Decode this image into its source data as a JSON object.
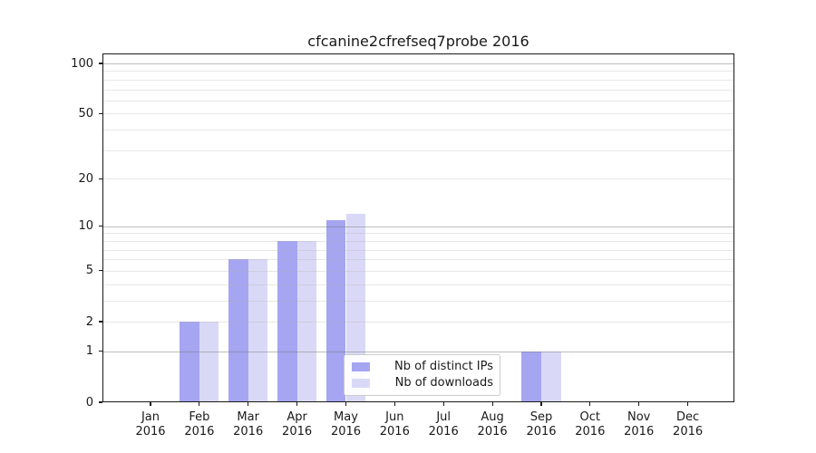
{
  "title": "cfcanine2cfrefseq7probe 2016",
  "chart_data": {
    "type": "bar",
    "title": "cfcanine2cfrefseq7probe 2016",
    "categories": [
      "Jan",
      "Feb",
      "Mar",
      "Apr",
      "May",
      "Jun",
      "Jul",
      "Aug",
      "Sep",
      "Oct",
      "Nov",
      "Dec"
    ],
    "year": "2016",
    "series": [
      {
        "name": "Nb of distinct IPs",
        "color": "#a5a5f2",
        "values": [
          0,
          2,
          6,
          8,
          11,
          0,
          0,
          0,
          1,
          0,
          0,
          0
        ]
      },
      {
        "name": "Nb of downloads",
        "color": "#d9d9f7",
        "values": [
          0,
          2,
          6,
          8,
          12,
          0,
          0,
          0,
          1,
          0,
          0,
          0
        ]
      }
    ],
    "xlabel": "",
    "ylabel": "",
    "y_axis": {
      "scale": "log1p",
      "tick_labels": [
        100,
        50,
        20,
        10,
        5,
        2,
        1,
        0
      ],
      "major_gridlines": [
        1,
        10,
        100
      ],
      "minor_gridlines": [
        2,
        3,
        4,
        5,
        6,
        7,
        8,
        9,
        20,
        30,
        40,
        50,
        60,
        70,
        80,
        90
      ],
      "ylim": [
        0,
        116
      ]
    },
    "grid": true,
    "legend": {
      "position": "lower-center",
      "entries": [
        "Nb of distinct IPs",
        "Nb of downloads"
      ]
    }
  }
}
